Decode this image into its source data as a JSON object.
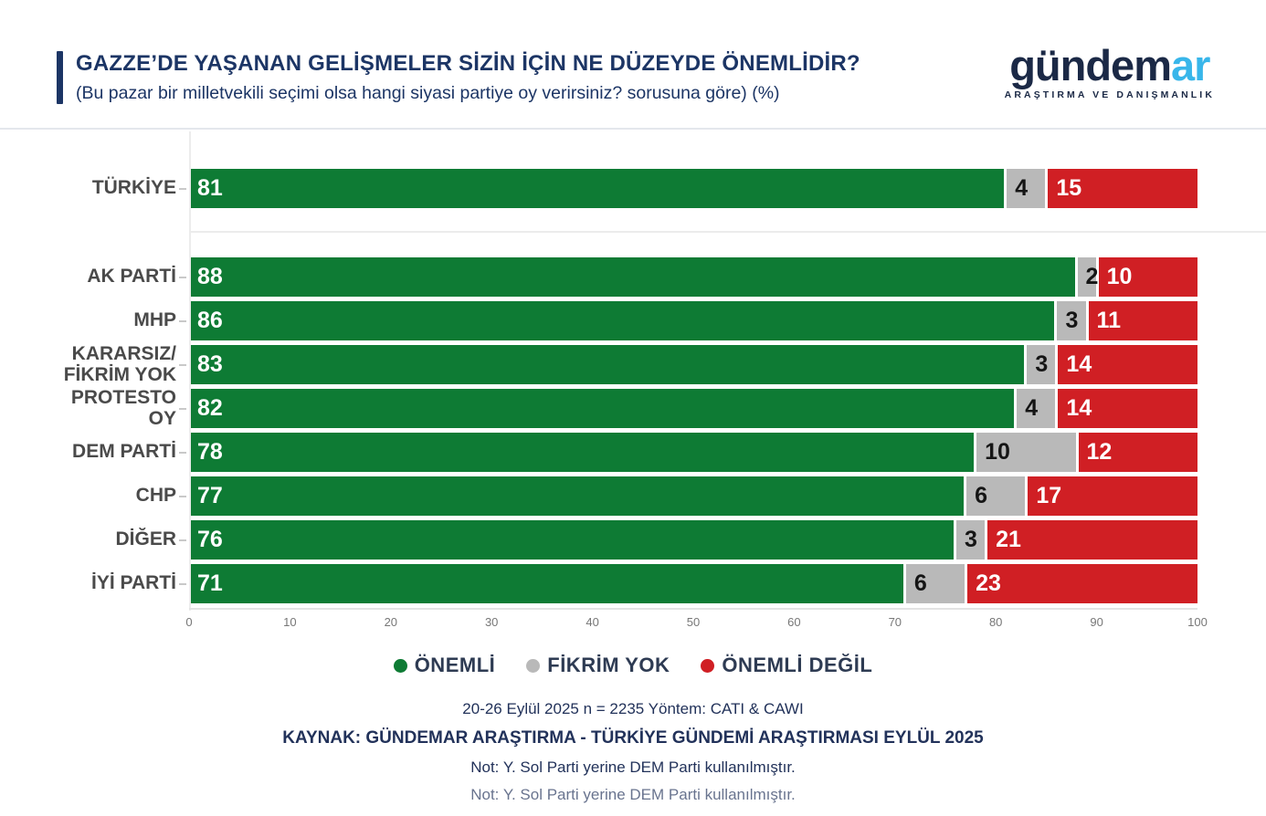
{
  "header": {
    "title": "GAZZE’DE YAŞANAN GELİŞMELER SİZİN İÇİN NE DÜZEYDE ÖNEMLİDİR?",
    "subtitle": "(Bu pazar bir milletvekili seçimi olsa hangi siyasi partiye oy verirsiniz? sorusuna göre) (%)"
  },
  "logo": {
    "wordmark_primary": "gündem",
    "wordmark_accent": "ar",
    "tagline": "ARAŞTIRMA VE DANIŞMANLIK",
    "primary_color": "#1b2946",
    "accent_color": "#38b6ea"
  },
  "chart_data": {
    "type": "bar",
    "orientation": "horizontal_stacked",
    "title": "GAZZE’DE YAŞANAN GELİŞMELER SİZİN İÇİN NE DÜZEYDE ÖNEMLİDİR?",
    "unit": "%",
    "categories": [
      "TÜRKİYE",
      "AK PARTİ",
      "MHP",
      "KARARSIZ/\nFİKRİM YOK",
      "PROTESTO OY",
      "DEM PARTİ",
      "CHP",
      "DİĞER",
      "İYİ PARTİ"
    ],
    "series": [
      {
        "name": "ÖNEMLİ",
        "color": "#0e7b34",
        "text_color": "#ffffff",
        "values": [
          81,
          88,
          86,
          83,
          82,
          78,
          77,
          76,
          71
        ]
      },
      {
        "name": "FİKRİM YOK",
        "color": "#b9b9b9",
        "text_color": "#151515",
        "values": [
          4,
          2,
          3,
          3,
          4,
          10,
          6,
          3,
          6
        ]
      },
      {
        "name": "ÖNEMLİ DEĞİL",
        "color": "#d01f24",
        "text_color": "#ffffff",
        "values": [
          15,
          10,
          11,
          14,
          14,
          12,
          17,
          21,
          23
        ]
      }
    ],
    "x_ticks": [
      0,
      10,
      20,
      30,
      40,
      50,
      60,
      70,
      80,
      90,
      100
    ],
    "xlim": [
      0,
      100
    ],
    "grid": "minimal",
    "legend_position": "bottom",
    "gap_after_first_category": true
  },
  "footer": {
    "line1": "20-26 Eylül 2025 n = 2235 Yöntem: CATI & CAWI",
    "line2": "KAYNAK: GÜNDEMAR ARAŞTIRMA - TÜRKİYE GÜNDEMİ ARAŞTIRMASI EYLÜL 2025",
    "line3": "Not: Y. Sol Parti yerine DEM Parti kullanılmıştır.",
    "line4": "Not: Y. Sol Parti yerine DEM Parti kullanılmıştır."
  }
}
